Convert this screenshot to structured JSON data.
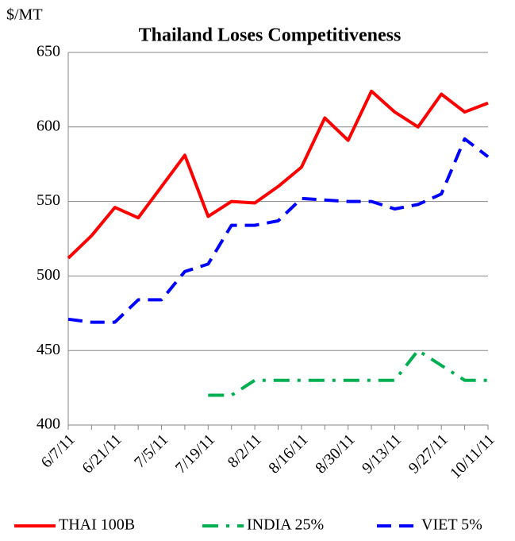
{
  "chart_data": {
    "type": "line",
    "title": "Thailand Loses Competitiveness",
    "y_label": "$/MT",
    "categories": [
      "6/7/11",
      null,
      "6/21/11",
      null,
      "7/5/11",
      null,
      "7/19/11",
      null,
      "8/2/11",
      null,
      "8/16/11",
      null,
      "8/30/11",
      null,
      "9/13/11",
      null,
      "9/27/11",
      null,
      "10/11/11"
    ],
    "series": [
      {
        "name": "THAI 100B",
        "color": "#ff0000",
        "style": "solid",
        "values": [
          512,
          527,
          546,
          539,
          560,
          581,
          540,
          550,
          549,
          560,
          573,
          606,
          591,
          624,
          610,
          600,
          622,
          610,
          616
        ]
      },
      {
        "name": "INDIA 25%",
        "color": "#00b050",
        "style": "dashdot",
        "values": [
          null,
          null,
          null,
          null,
          null,
          null,
          420,
          420,
          430,
          430,
          430,
          430,
          430,
          430,
          430,
          450,
          440,
          430,
          430
        ]
      },
      {
        "name": "VIET 5%",
        "color": "#0000ff",
        "style": "dashed",
        "values": [
          471,
          469,
          469,
          484,
          484,
          503,
          508,
          534,
          534,
          537,
          552,
          551,
          550,
          550,
          545,
          548,
          555,
          592,
          580
        ]
      }
    ],
    "ylim": [
      400,
      650
    ],
    "yticks": [
      400,
      450,
      500,
      550,
      600,
      650
    ],
    "grid": true,
    "legend": "bottom"
  }
}
